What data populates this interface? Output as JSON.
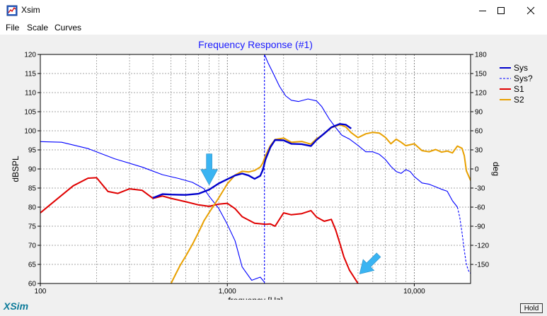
{
  "window": {
    "title": "Xsim",
    "icons": {
      "app": "xsim-app-icon",
      "minimize": "minimize-icon",
      "maximize": "maximize-icon",
      "close": "close-icon"
    }
  },
  "menu": {
    "items": [
      "File",
      "Scale",
      "Curves"
    ]
  },
  "footer": {
    "brand": "XSim",
    "hold_label": "Hold"
  },
  "colors": {
    "sys": "#0000cc",
    "sys_phase": "#0000ff",
    "s1": "#e00000",
    "s2": "#e8a000",
    "title": "#1a1aff",
    "arrow": "#3ab4f2"
  },
  "chart_data": {
    "type": "line",
    "title": "Frequency Response (#1)",
    "xlabel": "frequency [Hz]",
    "ylabel": "dBSPL",
    "y2label": "deg",
    "xscale": "log",
    "xlim": [
      100,
      20000
    ],
    "ylim": [
      60,
      120
    ],
    "y2lim": [
      -180,
      180
    ],
    "x_ticks": [
      {
        "value": 100,
        "label": "100"
      },
      {
        "value": 1000,
        "label": "1,000"
      },
      {
        "value": 10000,
        "label": "10,000"
      }
    ],
    "y_ticks": [
      "60",
      "65",
      "70",
      "75",
      "80",
      "85",
      "90",
      "95",
      "100",
      "105",
      "110",
      "115",
      "120"
    ],
    "y2_ticks": [
      "-150",
      "-120",
      "-90",
      "-60",
      "-30",
      "0",
      "30",
      "60",
      "90",
      "120",
      "150",
      "180"
    ],
    "grid": true,
    "legend_position": "top-right",
    "legend": [
      {
        "name": "Sys",
        "style": "solid"
      },
      {
        "name": "Sys?",
        "style": "dashed"
      },
      {
        "name": "S1",
        "style": "solid"
      },
      {
        "name": "S2",
        "style": "solid"
      }
    ],
    "series": [
      {
        "name": "Sys",
        "axis": "left",
        "width": 2.4,
        "x": [
          400,
          450,
          500,
          600,
          700,
          800,
          900,
          1000,
          1100,
          1200,
          1300,
          1400,
          1500,
          1550,
          1600,
          1700,
          1800,
          2000,
          2200,
          2500,
          2800,
          3000,
          3300,
          3600,
          4000,
          4300,
          4600
        ],
        "y": [
          82.4,
          83.4,
          83.3,
          83.2,
          83.5,
          84.6,
          86.2,
          87.3,
          88.3,
          88.8,
          88.3,
          87.4,
          88.2,
          89.8,
          92.5,
          95.7,
          97.6,
          97.5,
          96.6,
          96.5,
          96.0,
          97.6,
          99.3,
          100.9,
          101.8,
          101.6,
          100.6
        ]
      },
      {
        "name": "S1",
        "axis": "left",
        "width": 2,
        "x": [
          100,
          120,
          150,
          180,
          200,
          230,
          260,
          300,
          350,
          400,
          450,
          500,
          600,
          700,
          800,
          900,
          1000,
          1100,
          1200,
          1400,
          1600,
          1700,
          1800,
          2000,
          2200,
          2500,
          2800,
          3000,
          3300,
          3600,
          3800,
          4000,
          4200,
          4500,
          5000
        ],
        "y": [
          78.5,
          81.7,
          85.6,
          87.6,
          87.7,
          84.1,
          83.6,
          84.8,
          84.4,
          82.3,
          82.9,
          82.3,
          81.4,
          80.6,
          80.2,
          80.8,
          81.0,
          79.6,
          77.5,
          75.8,
          75.5,
          75.6,
          75.0,
          78.5,
          78.0,
          78.3,
          79.1,
          77.4,
          76.3,
          76.8,
          74.0,
          70.5,
          67.0,
          63.5,
          60.0
        ]
      },
      {
        "name": "S2",
        "axis": "left",
        "width": 2,
        "x": [
          500,
          530,
          560,
          600,
          650,
          700,
          750,
          800,
          900,
          1000,
          1100,
          1200,
          1300,
          1400,
          1500,
          1550,
          1600,
          1700,
          1800,
          2000,
          2200,
          2500,
          2800,
          3000,
          3300,
          3600,
          4000,
          4300,
          4600,
          5000,
          5500,
          6000,
          6500,
          7000,
          7500,
          8000,
          8500,
          9000,
          10000,
          11000,
          12000,
          13000,
          14000,
          15000,
          16000,
          17000,
          18000,
          18500,
          19000,
          20000
        ],
        "y": [
          60.0,
          62.5,
          64.8,
          67.2,
          70.2,
          73.3,
          76.4,
          78.6,
          82.4,
          86.1,
          88.4,
          89.4,
          89.2,
          89.6,
          90.5,
          91.6,
          93.5,
          96.1,
          97.7,
          98.1,
          97.0,
          97.2,
          96.5,
          97.9,
          99.2,
          100.8,
          101.6,
          101.0,
          99.5,
          98.2,
          99.2,
          99.6,
          99.4,
          98.3,
          96.6,
          97.8,
          97.0,
          96.1,
          96.6,
          94.8,
          94.5,
          95.1,
          94.4,
          94.7,
          94.2,
          96.0,
          95.4,
          93.5,
          89.5,
          87.0
        ]
      },
      {
        "name": "Sys",
        "axis": "right",
        "width": 1.1,
        "x": [
          100,
          130,
          180,
          250,
          350,
          450,
          550,
          650,
          750,
          800,
          900,
          1000,
          1100,
          1200,
          1350,
          1500,
          1580
        ],
        "y": [
          43,
          42,
          32,
          16,
          3,
          -9,
          -15,
          -21,
          -31,
          -43,
          -62,
          -87,
          -113,
          -154,
          -175,
          -170,
          -178
        ]
      },
      {
        "name": "Sys",
        "axis": "right",
        "width": 1.1,
        "x": [
          1580,
          1650,
          1750,
          1900,
          2050,
          2200,
          2400,
          2700,
          3000,
          3200,
          3500,
          3800,
          4100,
          4500,
          5000,
          5500,
          6000,
          6500,
          7000,
          7500,
          8000,
          8500,
          9000,
          9500,
          10000,
          11000,
          12000,
          13000,
          14000,
          15000,
          16000,
          17000
        ],
        "y": [
          180,
          167,
          152,
          130,
          115,
          108,
          106,
          110,
          107,
          98,
          79,
          65,
          53,
          47,
          37,
          27,
          27,
          23,
          15,
          4,
          -4,
          -7,
          -1,
          -4,
          -12,
          -22,
          -24,
          -28,
          -32,
          -35,
          -50,
          -60
        ]
      },
      {
        "name": "Sys?",
        "axis": "right",
        "width": 1.1,
        "dashed": true,
        "x": [
          1580,
          1580
        ],
        "y": [
          -180,
          180
        ]
      },
      {
        "name": "Sys?",
        "axis": "right",
        "width": 1.1,
        "dashed": true,
        "x": [
          17000,
          17500,
          18000,
          18500,
          19000,
          19500,
          20000
        ],
        "y": [
          -60,
          -76,
          -100,
          -128,
          -150,
          -160,
          -164
        ]
      }
    ],
    "annotations": [
      {
        "type": "arrow",
        "shape": "down",
        "x": 800,
        "y": 85.8
      },
      {
        "type": "arrow",
        "shape": "down-left",
        "x": 5100,
        "y": 62.5
      }
    ]
  }
}
